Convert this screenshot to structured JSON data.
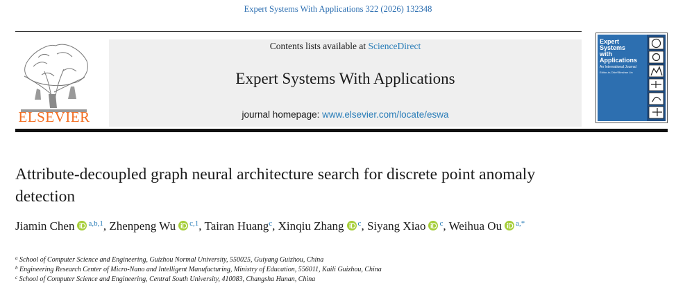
{
  "header": {
    "citation": "Expert Systems With Applications 322 (2026) 132348",
    "contents_prefix": "Contents lists available at",
    "contents_link": "ScienceDirect",
    "journal_title": "Expert Systems With Applications",
    "homepage_prefix": "journal homepage:",
    "homepage_link": "www.elsevier.com/locate/eswa",
    "publisher": "ELSEVIER",
    "cover": {
      "title_lines": [
        "Expert",
        "Systems",
        "with",
        "Applications"
      ],
      "subtitle": "An International Journal",
      "editor": "Editor-in-Chief Binshan Lin"
    }
  },
  "article": {
    "title": "Attribute-decoupled graph neural architecture search for discrete point anomaly detection",
    "separator": ",",
    "authors": [
      {
        "name": "Jiamin Chen",
        "orcid": true,
        "affil": "a,b,1"
      },
      {
        "name": "Zhenpeng Wu",
        "orcid": true,
        "affil": "c,1"
      },
      {
        "name": "Tairan Huang",
        "orcid": false,
        "affil": "c"
      },
      {
        "name": "Xinqiu Zhang",
        "orcid": true,
        "affil": "c"
      },
      {
        "name": "Siyang Xiao",
        "orcid": true,
        "affil": "c"
      },
      {
        "name": "Weihua Ou",
        "orcid": true,
        "affil": "a,*"
      }
    ],
    "affiliations": [
      {
        "label": "a",
        "text": "School of Computer Science and Engineering, Guizhou Normal University, 550025, Guiyang Guizhou, China"
      },
      {
        "label": "b",
        "text": "Engineering Research Center of Micro-Nano and Intelligent Manufacturing, Ministry of Education, 556011, Kaili Guizhou, China"
      },
      {
        "label": "c",
        "text": "School of Computer Science and Engineering, Central South University, 410083, Changsha Hunan, China"
      }
    ]
  }
}
